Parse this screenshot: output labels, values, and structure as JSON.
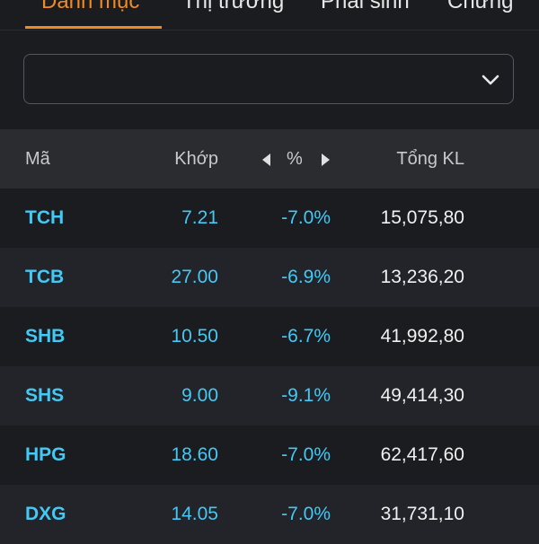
{
  "tabs": [
    {
      "label": "Danh mục",
      "active": true
    },
    {
      "label": "Thị trường",
      "active": false
    },
    {
      "label": "Phái sinh",
      "active": false
    },
    {
      "label": "Chứng",
      "active": false
    }
  ],
  "watchlist": {
    "selected_label": "",
    "chevron_icon": "chevron-down-icon"
  },
  "table": {
    "headers": {
      "code": "Mã",
      "match": "Khớp",
      "pct": "%",
      "volume": "Tổng KL"
    },
    "rows": [
      {
        "code": "TCH",
        "match": "7.21",
        "pct": "-7.0%",
        "volume": "15,075,80"
      },
      {
        "code": "TCB",
        "match": "27.00",
        "pct": "-6.9%",
        "volume": "13,236,20"
      },
      {
        "code": "SHB",
        "match": "10.50",
        "pct": "-6.7%",
        "volume": "41,992,80"
      },
      {
        "code": "SHS",
        "match": "9.00",
        "pct": "-9.1%",
        "volume": "49,414,30"
      },
      {
        "code": "HPG",
        "match": "18.60",
        "pct": "-7.0%",
        "volume": "62,417,60"
      },
      {
        "code": "DXG",
        "match": "14.05",
        "pct": "-7.0%",
        "volume": "31,731,10"
      }
    ]
  },
  "colors": {
    "accent": "#f08a24",
    "floor_price": "#44c8f5",
    "background": "#1b1c20",
    "header_bg": "#2b2c30"
  }
}
